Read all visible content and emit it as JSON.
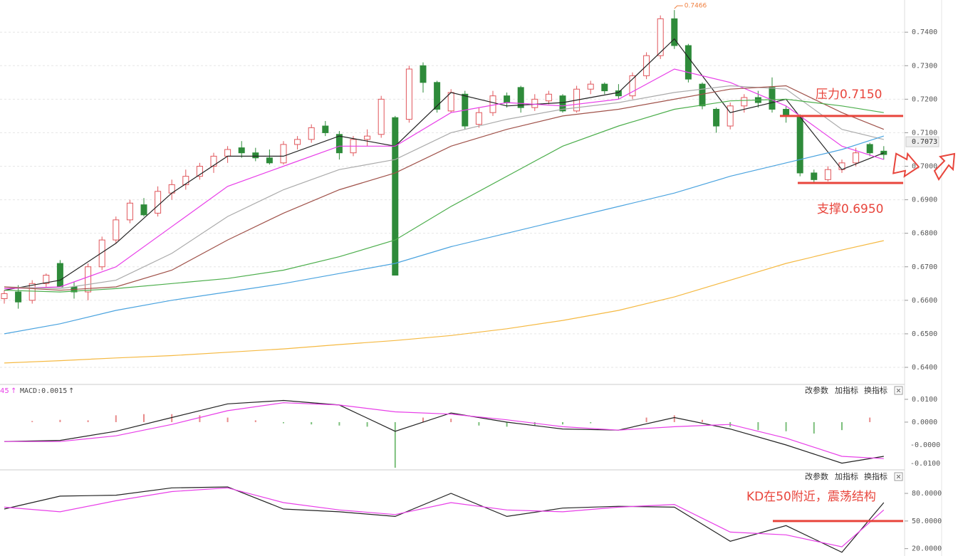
{
  "chart_data": [
    {
      "type": "candlestick",
      "open": [
        0.6605,
        0.6625,
        0.66,
        0.665,
        0.671,
        0.664,
        0.6625,
        0.67,
        0.678,
        0.684,
        0.6885,
        0.686,
        0.692,
        0.6945,
        0.697,
        0.7,
        0.703,
        0.7055,
        0.704,
        0.7025,
        0.701,
        0.7065,
        0.708,
        0.712,
        0.7095,
        0.704,
        0.708,
        0.7095,
        0.7145,
        0.714,
        0.73,
        0.725,
        0.7165,
        0.7215,
        0.7125,
        0.716,
        0.721,
        0.7235,
        0.7175,
        0.7195,
        0.721,
        0.7165,
        0.723,
        0.7245,
        0.7225,
        0.721,
        0.727,
        0.733,
        0.744,
        0.736,
        0.7245,
        0.717,
        0.712,
        0.718,
        0.7205,
        0.7235,
        0.717,
        0.715,
        0.698,
        0.696,
        0.699,
        0.701,
        0.7065,
        0.7045
      ],
      "high": [
        0.663,
        0.6645,
        0.666,
        0.668,
        0.672,
        0.6655,
        0.671,
        0.679,
        0.685,
        0.69,
        0.6905,
        0.694,
        0.696,
        0.699,
        0.701,
        0.704,
        0.706,
        0.7075,
        0.7055,
        0.705,
        0.7075,
        0.709,
        0.7125,
        0.7135,
        0.7105,
        0.709,
        0.711,
        0.721,
        0.715,
        0.73,
        0.731,
        0.7255,
        0.723,
        0.7225,
        0.7175,
        0.7225,
        0.722,
        0.724,
        0.7215,
        0.7225,
        0.7215,
        0.724,
        0.7255,
        0.725,
        0.7245,
        0.728,
        0.734,
        0.745,
        0.7466,
        0.7365,
        0.725,
        0.7175,
        0.719,
        0.7215,
        0.7225,
        0.7265,
        0.718,
        0.7155,
        0.699,
        0.7,
        0.702,
        0.7055,
        0.707,
        0.706
      ],
      "low": [
        0.659,
        0.6575,
        0.659,
        0.664,
        0.664,
        0.6605,
        0.66,
        0.669,
        0.677,
        0.683,
        0.685,
        0.685,
        0.69,
        0.693,
        0.696,
        0.698,
        0.701,
        0.7025,
        0.7015,
        0.7005,
        0.7005,
        0.705,
        0.707,
        0.709,
        0.702,
        0.703,
        0.706,
        0.7085,
        0.6675,
        0.713,
        0.722,
        0.716,
        0.716,
        0.711,
        0.7115,
        0.715,
        0.7175,
        0.716,
        0.7165,
        0.7185,
        0.716,
        0.716,
        0.7215,
        0.7215,
        0.72,
        0.72,
        0.726,
        0.732,
        0.735,
        0.725,
        0.717,
        0.71,
        0.711,
        0.716,
        0.7175,
        0.716,
        0.713,
        0.697,
        0.695,
        0.6955,
        0.698,
        0.7,
        0.703,
        0.702
      ],
      "close": [
        0.662,
        0.6595,
        0.665,
        0.6675,
        0.664,
        0.6625,
        0.67,
        0.678,
        0.684,
        0.689,
        0.6855,
        0.6925,
        0.6945,
        0.697,
        0.7,
        0.703,
        0.705,
        0.704,
        0.7025,
        0.701,
        0.7065,
        0.708,
        0.7115,
        0.71,
        0.704,
        0.708,
        0.709,
        0.72,
        0.6675,
        0.729,
        0.725,
        0.717,
        0.722,
        0.712,
        0.716,
        0.721,
        0.719,
        0.7175,
        0.72,
        0.7215,
        0.7165,
        0.723,
        0.7245,
        0.7225,
        0.721,
        0.727,
        0.733,
        0.744,
        0.736,
        0.726,
        0.718,
        0.712,
        0.718,
        0.7205,
        0.719,
        0.717,
        0.715,
        0.698,
        0.696,
        0.699,
        0.701,
        0.704,
        0.704,
        0.7035
      ],
      "up_color": "#e0565b",
      "down_color": "#2e8b3a",
      "series": [
        {
          "color": "#222222",
          "x": [
            0,
            4,
            8,
            12,
            16,
            20,
            24,
            28,
            32,
            36,
            40,
            44,
            48,
            52,
            56,
            60,
            63
          ],
          "values": [
            0.663,
            0.666,
            0.677,
            0.692,
            0.703,
            0.703,
            0.709,
            0.706,
            0.722,
            0.718,
            0.719,
            0.722,
            0.738,
            0.716,
            0.72,
            0.699,
            0.704
          ]
        },
        {
          "color": "#e83ee8",
          "x": [
            0,
            4,
            8,
            12,
            16,
            20,
            24,
            28,
            32,
            36,
            40,
            44,
            48,
            52,
            56,
            60,
            63
          ],
          "values": [
            0.6635,
            0.664,
            0.67,
            0.682,
            0.694,
            0.7,
            0.706,
            0.706,
            0.716,
            0.719,
            0.718,
            0.72,
            0.729,
            0.725,
            0.718,
            0.706,
            0.702
          ]
        },
        {
          "color": "#aaaaaa",
          "x": [
            0,
            4,
            8,
            12,
            16,
            20,
            24,
            28,
            32,
            36,
            40,
            44,
            48,
            52,
            56,
            60,
            63
          ],
          "values": [
            0.664,
            0.6635,
            0.666,
            0.674,
            0.685,
            0.693,
            0.699,
            0.702,
            0.71,
            0.714,
            0.717,
            0.719,
            0.722,
            0.724,
            0.723,
            0.711,
            0.708
          ]
        },
        {
          "color": "#a0524a",
          "x": [
            0,
            4,
            8,
            12,
            16,
            20,
            24,
            28,
            32,
            36,
            40,
            44,
            48,
            52,
            56,
            60,
            63
          ],
          "values": [
            0.664,
            0.663,
            0.664,
            0.669,
            0.678,
            0.686,
            0.693,
            0.698,
            0.706,
            0.711,
            0.715,
            0.717,
            0.72,
            0.723,
            0.724,
            0.716,
            0.711
          ]
        },
        {
          "color": "#4cae4c",
          "x": [
            0,
            4,
            8,
            12,
            16,
            20,
            24,
            28,
            32,
            36,
            40,
            44,
            48,
            52,
            56,
            60,
            63
          ],
          "values": [
            0.663,
            0.6625,
            0.6635,
            0.665,
            0.6665,
            0.669,
            0.673,
            0.678,
            0.688,
            0.697,
            0.706,
            0.712,
            0.717,
            0.7195,
            0.72,
            0.718,
            0.716
          ]
        },
        {
          "color": "#4aa3df",
          "x": [
            0,
            4,
            8,
            12,
            16,
            20,
            24,
            28,
            32,
            36,
            40,
            44,
            48,
            52,
            56,
            60,
            63
          ],
          "values": [
            0.65,
            0.653,
            0.657,
            0.66,
            0.6625,
            0.665,
            0.668,
            0.671,
            0.676,
            0.68,
            0.684,
            0.688,
            0.692,
            0.697,
            0.701,
            0.705,
            0.709
          ]
        },
        {
          "color": "#f5b942",
          "x": [
            0,
            4,
            8,
            12,
            16,
            20,
            24,
            28,
            32,
            36,
            40,
            44,
            48,
            52,
            56,
            60,
            63
          ],
          "values": [
            0.6413,
            0.642,
            0.6428,
            0.6435,
            0.6445,
            0.6455,
            0.6468,
            0.648,
            0.6495,
            0.6515,
            0.654,
            0.657,
            0.661,
            0.666,
            0.671,
            0.675,
            0.6778
          ]
        }
      ],
      "ylim": [
        0.6349,
        0.7496
      ],
      "yticks": [
        {
          "value": 0.74,
          "label": "0.7400"
        },
        {
          "value": 0.73,
          "label": "0.7300"
        },
        {
          "value": 0.72,
          "label": "0.7200"
        },
        {
          "value": 0.71,
          "label": "0.7100"
        },
        {
          "value": 0.7,
          "label": "0.7000"
        },
        {
          "value": 0.69,
          "label": "0.6900"
        },
        {
          "value": 0.68,
          "label": "0.6800"
        },
        {
          "value": 0.67,
          "label": "0.6700"
        },
        {
          "value": 0.66,
          "label": "0.6600"
        },
        {
          "value": 0.65,
          "label": "0.6500"
        },
        {
          "value": 0.64,
          "label": "0.6400"
        }
      ],
      "grid": true,
      "current_price": {
        "value": 0.7073,
        "label": "0.7073"
      },
      "high_label": "0.7466",
      "annotations": [
        {
          "value": 0.715,
          "label": "压力0.7150"
        },
        {
          "value": 0.695,
          "label": "支撑0.6950"
        }
      ]
    },
    {
      "type": "macd",
      "header": {
        "period": "45",
        "arrow": "↑",
        "indicator": "MACD:0.0015"
      },
      "buttons": [
        "改参数",
        "加指标",
        "换指标"
      ],
      "bars": {
        "up_color": "#e88a8a",
        "down_color": "#7cbf7c",
        "x": [
          0,
          2,
          4,
          6,
          8,
          10,
          12,
          14,
          16,
          18,
          20,
          22,
          24,
          26,
          28,
          30,
          32,
          34,
          36,
          38,
          40,
          42,
          44,
          46,
          48,
          50,
          52,
          54,
          56,
          58,
          60,
          62
        ],
        "values": [
          0.0,
          0.0005,
          0.001,
          0.0008,
          0.003,
          0.0035,
          0.0035,
          0.003,
          0.002,
          0.0008,
          -0.0005,
          -0.001,
          -0.0015,
          -0.002,
          -0.02,
          0.002,
          0.0015,
          -0.0015,
          -0.002,
          -0.0015,
          -0.001,
          -0.0005,
          0.0,
          0.002,
          0.003,
          0.001,
          -0.002,
          -0.0035,
          -0.004,
          -0.005,
          -0.0035,
          0.002
        ]
      },
      "series": [
        {
          "color": "#222222",
          "x": [
            0,
            4,
            8,
            12,
            16,
            20,
            24,
            28,
            32,
            36,
            40,
            44,
            48,
            52,
            56,
            60,
            63
          ],
          "values": [
            -0.0085,
            -0.008,
            -0.004,
            0.002,
            0.008,
            0.0095,
            0.0075,
            -0.004,
            0.004,
            0.0,
            -0.003,
            -0.0035,
            0.002,
            -0.003,
            -0.01,
            -0.018,
            -0.015
          ]
        },
        {
          "color": "#e83ee8",
          "x": [
            0,
            4,
            8,
            12,
            16,
            20,
            24,
            28,
            32,
            36,
            40,
            44,
            48,
            52,
            56,
            60,
            63
          ],
          "values": [
            -0.0085,
            -0.0085,
            -0.006,
            -0.001,
            0.005,
            0.0085,
            0.0075,
            0.0045,
            0.0035,
            0.001,
            -0.002,
            -0.0035,
            -0.002,
            -0.001,
            -0.007,
            -0.015,
            -0.016
          ]
        }
      ],
      "ylim": [
        -0.0203,
        0.0159
      ],
      "yticks": [
        {
          "value": 0.01,
          "label": "0.0100"
        },
        {
          "value": 0,
          "label": "0.0000"
        }
      ],
      "extra_axis_labels": [
        "-0.0000",
        "-0.0100"
      ]
    },
    {
      "type": "line",
      "buttons": [
        "改参数",
        "加指标",
        "换指标"
      ],
      "series": [
        {
          "color": "#222222",
          "x": [
            0,
            4,
            8,
            12,
            16,
            20,
            24,
            28,
            32,
            36,
            40,
            44,
            48,
            52,
            56,
            60,
            63
          ],
          "values": [
            63,
            77,
            78,
            86,
            87,
            63,
            60,
            55,
            80,
            55,
            64,
            66,
            65,
            28,
            45,
            16,
            70
          ]
        },
        {
          "color": "#e83ee8",
          "x": [
            0,
            4,
            8,
            12,
            16,
            20,
            24,
            28,
            32,
            36,
            40,
            44,
            48,
            52,
            56,
            60,
            63
          ],
          "values": [
            65,
            60,
            72,
            82,
            86,
            70,
            62,
            57,
            70,
            62,
            60,
            65,
            68,
            38,
            35,
            22,
            62
          ]
        }
      ],
      "ylim": [
        12,
        104
      ],
      "yticks": [
        {
          "value": 80,
          "label": "80.0000"
        },
        {
          "value": 50,
          "label": "50.0000"
        },
        {
          "value": 20,
          "label": "20.0000"
        }
      ],
      "annotation": {
        "value": 50,
        "label": "KD在50附近，震荡结构"
      }
    }
  ]
}
